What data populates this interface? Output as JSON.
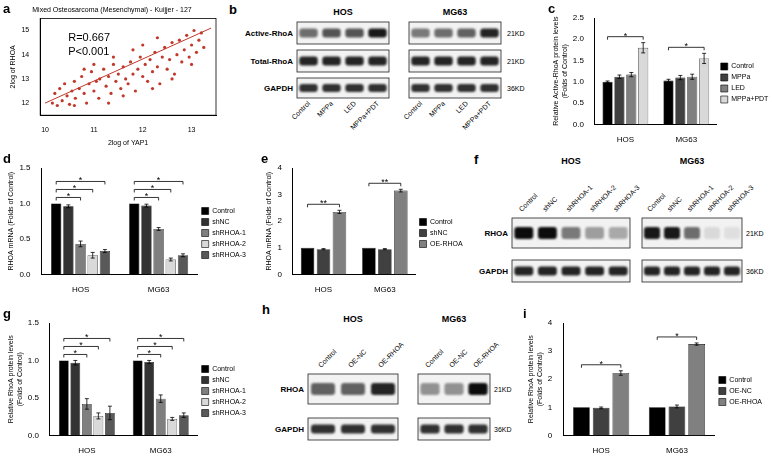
{
  "chart_data": [
    {
      "panel": "a",
      "type": "scatter",
      "title": "Mixed Osteosarcoma (Mesenchymal) - Kuijjer - 127",
      "xlabel": "2log of YAP1",
      "ylabel": "2log of RHOA",
      "color": "#c0392b",
      "grid": false,
      "annotations": [
        "R=0.667",
        "P<0.001"
      ],
      "xlim": [
        9.9,
        13.5
      ],
      "xticks": [
        10,
        11,
        12,
        13
      ],
      "ylim": [
        11.5,
        15.5
      ],
      "yticks": [
        12,
        13,
        14,
        15
      ],
      "x": [
        10.15,
        10.2,
        10.25,
        10.3,
        10.35,
        10.4,
        10.45,
        10.5,
        10.55,
        10.6,
        10.62,
        10.7,
        10.75,
        10.8,
        10.85,
        10.9,
        10.95,
        11.0,
        11.05,
        11.1,
        11.12,
        11.2,
        11.25,
        11.3,
        11.35,
        11.4,
        11.45,
        11.5,
        11.55,
        11.6,
        11.65,
        11.7,
        11.75,
        11.8,
        11.85,
        11.9,
        11.95,
        12.0,
        12.05,
        12.1,
        12.15,
        12.2,
        12.25,
        12.3,
        12.35,
        12.4,
        12.45,
        12.5,
        12.55,
        12.6,
        12.65,
        12.7,
        12.75,
        12.8,
        12.85,
        12.9,
        12.95,
        13.0,
        13.05,
        13.1,
        13.15,
        13.2,
        13.25,
        11.0,
        11.3,
        12.0,
        12.3,
        10.8,
        11.6,
        12.6,
        12.2,
        11.8,
        10.6,
        13.0,
        11.4
      ],
      "values": [
        12.0,
        12.4,
        11.9,
        12.6,
        12.1,
        12.8,
        12.3,
        11.95,
        12.5,
        12.9,
        12.2,
        12.6,
        13.1,
        12.4,
        12.0,
        12.8,
        13.3,
        12.5,
        12.9,
        12.2,
        13.0,
        13.4,
        12.7,
        13.1,
        12.4,
        13.6,
        12.9,
        13.2,
        12.6,
        13.5,
        13.0,
        12.8,
        13.7,
        13.2,
        12.5,
        13.4,
        13.9,
        13.1,
        13.6,
        12.9,
        13.8,
        13.3,
        14.1,
        13.5,
        12.8,
        13.9,
        14.3,
        13.4,
        13.8,
        14.5,
        13.2,
        14.0,
        14.6,
        13.7,
        14.2,
        14.8,
        13.9,
        14.4,
        15.0,
        14.1,
        14.6,
        14.9,
        14.3,
        13.6,
        12.0,
        14.4,
        14.7,
        13.4,
        12.3,
        13.0,
        12.6,
        14.2,
        11.9,
        13.6,
        13.9
      ],
      "trend_line": {
        "x": [
          10.0,
          13.4
        ],
        "values": [
          12.0,
          15.1
        ],
        "color": "#c0392b"
      }
    },
    {
      "panel": "c",
      "type": "bar",
      "ylabel": [
        "Relative Active-RhoA protein levels",
        "(Folds of Control)"
      ],
      "categories": [
        "HOS",
        "MG63"
      ],
      "legend": "right",
      "grid": false,
      "ylim": [
        0,
        2.5
      ],
      "yticks": [
        {
          "value": 0,
          "label": "0.0"
        },
        0.5,
        {
          "value": 1,
          "label": "1.0"
        },
        1.5,
        {
          "value": 2,
          "label": "2.0"
        },
        2.5
      ],
      "series": [
        {
          "name": "Control",
          "color": "#000000",
          "values": [
            1.0,
            1.03
          ],
          "errors": [
            0.02,
            0.03
          ]
        },
        {
          "name": "MPPa",
          "color": "#404040",
          "values": [
            1.12,
            1.1
          ],
          "errors": [
            0.04,
            0.05
          ]
        },
        {
          "name": "LED",
          "color": "#808080",
          "values": [
            1.17,
            1.12
          ],
          "errors": [
            0.05,
            0.06
          ]
        },
        {
          "name": "MPPa+PDT",
          "color": "#d9d9d9",
          "values": [
            1.8,
            1.55
          ],
          "errors": [
            0.12,
            0.12
          ]
        }
      ],
      "significance": [
        {
          "category": "HOS",
          "from": "Control",
          "to": "MPPa+PDT",
          "label": "*"
        },
        {
          "category": "MG63",
          "from": "Control",
          "to": "MPPa+PDT",
          "label": "*"
        }
      ]
    },
    {
      "panel": "d",
      "type": "bar",
      "ylabel": [
        "RHOA mRNA (Folds of Control)"
      ],
      "categories": [
        "HOS",
        "MG63"
      ],
      "legend": "right",
      "grid": false,
      "ylim": [
        0,
        1.5
      ],
      "yticks": [
        {
          "value": 0,
          "label": "0.0"
        },
        0.5,
        {
          "value": 1,
          "label": "1.0"
        },
        1.5
      ],
      "series": [
        {
          "name": "Control",
          "color": "#000000",
          "values": [
            1.0,
            1.0
          ],
          "errors": [
            0,
            0
          ]
        },
        {
          "name": "shNC",
          "color": "#333333",
          "values": [
            0.96,
            0.97
          ],
          "errors": [
            0.02,
            0.02
          ]
        },
        {
          "name": "shRHOA-1",
          "color": "#7f7f7f",
          "values": [
            0.43,
            0.64
          ],
          "errors": [
            0.04,
            0.02
          ]
        },
        {
          "name": "shRHOA-2",
          "color": "#d9d9d9",
          "values": [
            0.27,
            0.21
          ],
          "errors": [
            0.04,
            0.02
          ]
        },
        {
          "name": "shRHOA-3",
          "color": "#595959",
          "values": [
            0.33,
            0.27
          ],
          "errors": [
            0.02,
            0.02
          ]
        }
      ],
      "significance": [
        {
          "category": "HOS",
          "from": "Control",
          "to": "shRHOA-1",
          "label": "*"
        },
        {
          "category": "HOS",
          "from": "Control",
          "to": "shRHOA-2",
          "label": "*"
        },
        {
          "category": "HOS",
          "from": "Control",
          "to": "shRHOA-3",
          "label": "*"
        },
        {
          "category": "MG63",
          "from": "Control",
          "to": "shRHOA-1",
          "label": "*"
        },
        {
          "category": "MG63",
          "from": "Control",
          "to": "shRHOA-2",
          "label": "*"
        },
        {
          "category": "MG63",
          "from": "Control",
          "to": "shRHOA-3",
          "label": "*"
        }
      ]
    },
    {
      "panel": "e",
      "type": "bar",
      "ylabel": [
        "RHOA mRNA (Folds of Control)"
      ],
      "categories": [
        "HOS",
        "MG63"
      ],
      "legend": "right",
      "grid": false,
      "ylim": [
        0,
        4
      ],
      "yticks": [
        0,
        1,
        2,
        3,
        4
      ],
      "series": [
        {
          "name": "Control",
          "color": "#000000",
          "values": [
            1.0,
            1.0
          ],
          "errors": [
            0,
            0
          ]
        },
        {
          "name": "shNC",
          "color": "#404040",
          "values": [
            0.95,
            0.95
          ],
          "errors": [
            0.02,
            0.02
          ]
        },
        {
          "name": "OE-RHOA",
          "color": "#808080",
          "values": [
            2.35,
            3.15
          ],
          "errors": [
            0.06,
            0.05
          ]
        }
      ],
      "significance": [
        {
          "category": "HOS",
          "from": "Control",
          "to": "OE-RHOA",
          "label": "**"
        },
        {
          "category": "MG63",
          "from": "Control",
          "to": "OE-RHOA",
          "label": "**"
        }
      ]
    },
    {
      "panel": "g",
      "type": "bar",
      "ylabel": [
        "Relative RhoA protein levels",
        "(Folds of Control)"
      ],
      "categories": [
        "HOS",
        "MG63"
      ],
      "legend": "right",
      "grid": false,
      "ylim": [
        0,
        1.5
      ],
      "yticks": [
        {
          "value": 0,
          "label": "0.0"
        },
        0.5,
        {
          "value": 1,
          "label": "1.0"
        },
        1.5
      ],
      "series": [
        {
          "name": "Control",
          "color": "#000000",
          "values": [
            1.0,
            1.0
          ],
          "errors": [
            0,
            0
          ]
        },
        {
          "name": "shNC",
          "color": "#333333",
          "values": [
            0.97,
            0.98
          ],
          "errors": [
            0.03,
            0.02
          ]
        },
        {
          "name": "shRHOA-1",
          "color": "#7f7f7f",
          "values": [
            0.42,
            0.49
          ],
          "errors": [
            0.07,
            0.05
          ]
        },
        {
          "name": "shRHOA-2",
          "color": "#d9d9d9",
          "values": [
            0.26,
            0.22
          ],
          "errors": [
            0.04,
            0.02
          ]
        },
        {
          "name": "shRHOA-3",
          "color": "#595959",
          "values": [
            0.3,
            0.27
          ],
          "errors": [
            0.09,
            0.03
          ]
        }
      ],
      "significance": [
        {
          "category": "HOS",
          "from": "Control",
          "to": "shRHOA-1",
          "label": "*"
        },
        {
          "category": "HOS",
          "from": "Control",
          "to": "shRHOA-2",
          "label": "*"
        },
        {
          "category": "HOS",
          "from": "Control",
          "to": "shRHOA-3",
          "label": "*"
        },
        {
          "category": "MG63",
          "from": "Control",
          "to": "shRHOA-1",
          "label": "*"
        },
        {
          "category": "MG63",
          "from": "Control",
          "to": "shRHOA-2",
          "label": "*"
        },
        {
          "category": "MG63",
          "from": "Control",
          "to": "shRHOA-3",
          "label": "*"
        }
      ]
    },
    {
      "panel": "i",
      "type": "bar",
      "ylabel": [
        "Relative RhoA protein levels",
        "(Folds of Contral)"
      ],
      "categories": [
        "HOS",
        "MG63"
      ],
      "legend": "right",
      "grid": false,
      "ylim": [
        0,
        4
      ],
      "yticks": [
        0,
        1,
        2,
        3,
        4
      ],
      "series": [
        {
          "name": "Control",
          "color": "#000000",
          "values": [
            1.0,
            1.0
          ],
          "errors": [
            0,
            0
          ]
        },
        {
          "name": "OE-NC",
          "color": "#404040",
          "values": [
            0.98,
            1.03
          ],
          "errors": [
            0.03,
            0.05
          ]
        },
        {
          "name": "OE-RHOA",
          "color": "#808080",
          "values": [
            2.22,
            3.25
          ],
          "errors": [
            0.08,
            0.04
          ]
        }
      ],
      "significance": [
        {
          "category": "HOS",
          "from": "Control",
          "to": "OE-RHOA",
          "label": "*"
        },
        {
          "category": "MG63",
          "from": "Control",
          "to": "OE-RHOA",
          "label": "*"
        }
      ]
    }
  ],
  "blots": [
    {
      "panel": "b",
      "lanes": [
        "Control",
        "MPPa",
        "LED",
        "MPPa+PDT"
      ],
      "rows": [
        {
          "name": "Active-RhoA",
          "size": "21KD"
        },
        {
          "name": "Total-RhoA",
          "size": "21KD"
        },
        {
          "name": "GAPDH",
          "size": "36KD"
        }
      ],
      "groups": [
        {
          "name": "HOS",
          "intensity": [
            [
              0.55,
              0.65,
              0.65,
              0.9
            ],
            [
              0.85,
              0.85,
              0.85,
              0.85
            ],
            [
              0.8,
              0.8,
              0.8,
              0.8
            ]
          ]
        },
        {
          "name": "MG63",
          "intensity": [
            [
              0.5,
              0.55,
              0.6,
              0.85
            ],
            [
              0.85,
              0.85,
              0.85,
              0.85
            ],
            [
              0.8,
              0.8,
              0.8,
              0.8
            ]
          ]
        }
      ]
    },
    {
      "panel": "f",
      "lanes": [
        "Control",
        "shNC",
        "shRHOA-1",
        "shRHOA-2",
        "shRHOA-3"
      ],
      "rows": [
        {
          "name": "RHOA",
          "size": "21KD"
        },
        {
          "name": "GAPDH",
          "size": "36KD"
        }
      ],
      "groups": [
        {
          "name": "HOS",
          "intensity": [
            [
              0.95,
              0.95,
              0.5,
              0.35,
              0.3
            ],
            [
              0.85,
              0.85,
              0.85,
              0.85,
              0.85
            ]
          ]
        },
        {
          "name": "MG63",
          "intensity": [
            [
              0.9,
              0.9,
              0.55,
              0.1,
              0.08
            ],
            [
              0.85,
              0.85,
              0.85,
              0.85,
              0.85
            ]
          ]
        }
      ]
    },
    {
      "panel": "h",
      "lanes": [
        "Control",
        "OE-NC",
        "OE-RHOA"
      ],
      "rows": [
        {
          "name": "RHOA",
          "size": "21KD"
        },
        {
          "name": "GAPDH",
          "size": "36KD"
        }
      ],
      "groups": [
        {
          "name": "HOS",
          "intensity": [
            [
              0.6,
              0.6,
              0.85
            ],
            [
              0.8,
              0.8,
              0.8
            ]
          ]
        },
        {
          "name": "MG63",
          "intensity": [
            [
              0.4,
              0.4,
              0.95
            ],
            [
              0.8,
              0.8,
              0.8
            ]
          ]
        }
      ]
    }
  ]
}
